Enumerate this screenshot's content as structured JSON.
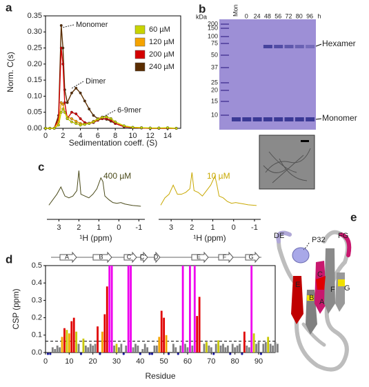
{
  "chart_data": [
    {
      "type": "line",
      "panel": "a",
      "ylabel": "Norm. C(s)",
      "xlabel": "Sedimentation coeff. (S)",
      "x": [
        0,
        0.5,
        1,
        1.5,
        1.8,
        2,
        2.2,
        2.5,
        3,
        3.5,
        4,
        4.5,
        5,
        5.5,
        6,
        6.5,
        7,
        7.5,
        8,
        9,
        10,
        11,
        12,
        13,
        14,
        15
      ],
      "series": [
        {
          "name": "60 µM",
          "color": "#c8d400",
          "values": [
            0,
            0,
            0,
            0.01,
            0.05,
            0.06,
            0.05,
            0.03,
            0.02,
            0.015,
            0.01,
            0.012,
            0.015,
            0.02,
            0.028,
            0.034,
            0.035,
            0.03,
            0.02,
            0.008,
            0.003,
            0.002,
            0.001,
            0.001,
            0.002,
            0
          ]
        },
        {
          "name": "120 µM",
          "color": "#f5a300",
          "values": [
            0,
            0,
            0,
            0.02,
            0.08,
            0.075,
            0.05,
            0.035,
            0.03,
            0.022,
            0.015,
            0.013,
            0.016,
            0.022,
            0.03,
            0.035,
            0.036,
            0.03,
            0.02,
            0.007,
            0.003,
            0.002,
            0.001,
            0.001,
            0.001,
            0
          ]
        },
        {
          "name": "200 µM",
          "color": "#d40000",
          "values": [
            0,
            0,
            0,
            0.03,
            0.25,
            0.2,
            0.08,
            0.03,
            0.05,
            0.045,
            0.03,
            0.018,
            0.015,
            0.018,
            0.025,
            0.03,
            0.03,
            0.025,
            0.015,
            0.005,
            0.002,
            0.001,
            0,
            0,
            0,
            0
          ]
        },
        {
          "name": "240 µM",
          "color": "#5a2d00",
          "values": [
            0,
            0,
            0,
            0.04,
            0.32,
            0.25,
            0.12,
            0.08,
            0.11,
            0.125,
            0.11,
            0.085,
            0.06,
            0.04,
            0.03,
            0.03,
            0.028,
            0.022,
            0.015,
            0.005,
            0.002,
            0.001,
            0,
            0,
            0,
            0
          ]
        }
      ],
      "xlim": [
        0,
        15.5
      ],
      "xticks": [
        0,
        2,
        4,
        6,
        8,
        10,
        12,
        14
      ],
      "ylim": [
        0,
        0.35
      ],
      "yticks": [
        {
          "value": 0,
          "label": "0.00"
        },
        0.05,
        {
          "value": 0.1,
          "label": "0.10"
        },
        0.15,
        {
          "value": 0.2,
          "label": "0.20"
        },
        0.25,
        {
          "value": 0.3,
          "label": "0.30"
        },
        0.35
      ],
      "annotations": [
        "Monomer",
        "Dimer",
        "6-9mer"
      ]
    },
    {
      "type": "spectrum",
      "panel": "c",
      "xlabel": "¹H (ppm)",
      "x": [
        3.5,
        3.3,
        3.1,
        2.9,
        2.7,
        2.5,
        2.3,
        2.1,
        2.0,
        1.9,
        1.7,
        1.5,
        1.3,
        1.1,
        0.9,
        0.8,
        0.7,
        0.5,
        0.3,
        0.1,
        -0.1,
        -0.3,
        -0.5,
        -0.7,
        -0.9,
        -1.1
      ],
      "series": [
        {
          "name": "400 µM",
          "color": "#4a4a1a",
          "values": [
            0.05,
            0.2,
            0.35,
            0.55,
            0.3,
            0.25,
            0.3,
            0.45,
            1.0,
            0.35,
            0.3,
            0.25,
            0.35,
            0.5,
            0.8,
            0.7,
            0.3,
            0.2,
            0.12,
            0.1,
            0.12,
            0.08,
            0.06,
            0.04,
            0.03,
            0.02
          ]
        },
        {
          "name": "10 µM",
          "color": "#c8a800",
          "values": [
            0.05,
            0.25,
            0.35,
            0.6,
            0.35,
            0.35,
            0.4,
            0.5,
            0.95,
            0.45,
            0.4,
            0.3,
            0.45,
            0.6,
            0.85,
            0.6,
            0.3,
            0.25,
            0.15,
            0.1,
            0.12,
            0.1,
            0.08,
            0.06,
            0.05,
            0.04
          ]
        }
      ],
      "xlim": [
        3.6,
        -1.3
      ],
      "xticks": [
        3,
        2,
        1,
        0,
        -1
      ],
      "ylim": [
        0,
        1.1
      ]
    },
    {
      "type": "bar",
      "panel": "d",
      "ylabel": "CSP (ppm)",
      "xlabel": "Residue",
      "strands": [
        "A",
        "B",
        "C",
        "C'",
        "D",
        "E",
        "F",
        "G"
      ],
      "series": [
        {
          "color": "#808080",
          "x": [
            3,
            4,
            5,
            6,
            14,
            17,
            18,
            19,
            20,
            21,
            29,
            31,
            32,
            34,
            37,
            38,
            39,
            41,
            42,
            43,
            46,
            47,
            54,
            55,
            57,
            59,
            60,
            62,
            67,
            69,
            70,
            72,
            74,
            75,
            76,
            77,
            79,
            80,
            81,
            82,
            85,
            86,
            89,
            90,
            92,
            93,
            95,
            96,
            97,
            98
          ],
          "values": [
            0.03,
            0.02,
            0.04,
            0.03,
            0.05,
            0.04,
            0.03,
            0.05,
            0.04,
            0.05,
            0.04,
            0.03,
            0.05,
            0.04,
            0.03,
            0.05,
            0.04,
            0.02,
            0.05,
            0.03,
            0.04,
            0.04,
            0.05,
            0.03,
            0.04,
            0.05,
            0.03,
            0.04,
            0.05,
            0.04,
            0.03,
            0.05,
            0.04,
            0.05,
            0.03,
            0.04,
            0.05,
            0.03,
            0.04,
            0.05,
            0.04,
            0.03,
            0.05,
            0.06,
            0.05,
            0.06,
            0.05,
            0.04,
            0.06,
            0.05
          ]
        },
        {
          "color": "#c8c800",
          "x": [
            9,
            13,
            16,
            30,
            68,
            73,
            88,
            94
          ],
          "values": [
            0.13,
            0.12,
            0.08,
            0.05,
            0.06,
            0.07,
            0.11,
            0.09
          ]
        },
        {
          "color": "#f5a300",
          "x": [
            7,
            10,
            24,
            48,
            51
          ],
          "values": [
            0.09,
            0.11,
            0.12,
            0.09,
            0.1
          ]
        },
        {
          "color": "#e00000",
          "x": [
            8,
            11,
            12,
            22,
            25,
            26,
            49,
            50,
            64,
            65,
            84
          ],
          "values": [
            0.14,
            0.18,
            0.2,
            0.15,
            0.22,
            0.38,
            0.24,
            0.2,
            0.21,
            0.32,
            0.12
          ]
        },
        {
          "color": "#ee00ee",
          "x": [
            27,
            28,
            35,
            36,
            58,
            61,
            63,
            87
          ],
          "values": [
            0.5,
            0.5,
            0.5,
            0.5,
            0.5,
            0.5,
            0.5,
            0.5
          ]
        },
        {
          "color": "#1a1aa0",
          "marker": "dot",
          "x": [
            1,
            2,
            15,
            23,
            33,
            40,
            44,
            45,
            52,
            56,
            71,
            78,
            83,
            91
          ],
          "values": [
            0,
            0,
            0,
            0,
            0,
            0,
            0,
            0,
            0,
            0,
            0,
            0,
            0,
            0
          ]
        }
      ],
      "threshold": 0.065,
      "xlim": [
        0,
        97
      ],
      "xticks": [
        0,
        10,
        20,
        30,
        40,
        50,
        60,
        70,
        80,
        90
      ],
      "ylim": [
        0,
        0.5
      ],
      "yticks": [
        {
          "value": 0,
          "label": "0.0"
        },
        0.1,
        0.2,
        0.3,
        0.4,
        0.5
      ]
    }
  ],
  "gel": {
    "panel": "b",
    "unit": "kDa",
    "markers": [
      200,
      150,
      100,
      75,
      50,
      37,
      25,
      20,
      15,
      10
    ],
    "lanes": [
      "Mon",
      "0",
      "24",
      "48",
      "56",
      "72",
      "80",
      "96"
    ],
    "time_unit": "h",
    "bands": [
      "Hexamer",
      "Monomer"
    ]
  },
  "structure": {
    "panel": "e",
    "labels": [
      "DE",
      "P32",
      "FG",
      "C",
      "F",
      "G",
      "E",
      "B",
      "A"
    ]
  }
}
